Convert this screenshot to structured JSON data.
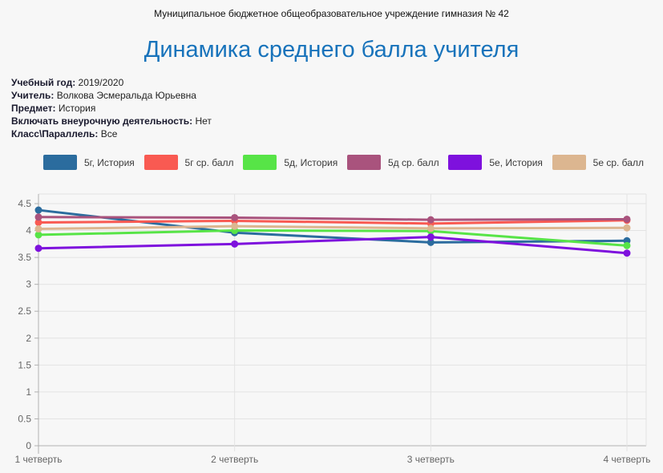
{
  "header": {
    "org_line": "Муниципальное бюджетное общеобразовательное учреждение гимназия № 42",
    "title": "Динамика среднего балла учителя",
    "title_color": "#1873bb"
  },
  "info": [
    {
      "label": "Учебный год:",
      "value": "2019/2020"
    },
    {
      "label": "Учитель:",
      "value": "Волкова Эсмеральда Юрьевна"
    },
    {
      "label": "Предмет:",
      "value": "История"
    },
    {
      "label": "Включать внеурочную деятельность:",
      "value": "Нет"
    },
    {
      "label": "Класс\\Параллель:",
      "value": "Все"
    }
  ],
  "chart_colors": {
    "background": "#f7f7f7",
    "gridline": "#e3e3e3",
    "axis": "#b0b0b0",
    "tick_text": "#666666"
  },
  "chart_data": {
    "type": "line",
    "title": "",
    "xlabel": "",
    "ylabel": "",
    "categories": [
      "1 четверть",
      "2 четверть",
      "3 четверть",
      "4 четверть"
    ],
    "series": [
      {
        "name": "5г, История",
        "color": "#2b6c9e",
        "values": [
          4.38,
          3.96,
          3.78,
          3.81
        ]
      },
      {
        "name": "5г ср. балл",
        "color": "#f95a52",
        "values": [
          4.15,
          4.18,
          4.13,
          4.19
        ]
      },
      {
        "name": "5д, История",
        "color": "#57e447",
        "values": [
          3.92,
          4.0,
          3.99,
          3.72
        ]
      },
      {
        "name": "5д ср. балл",
        "color": "#a9537d",
        "values": [
          4.25,
          4.24,
          4.2,
          4.21
        ]
      },
      {
        "name": "5е, История",
        "color": "#7e11dd",
        "values": [
          3.67,
          3.75,
          3.88,
          3.58
        ]
      },
      {
        "name": "5е ср. балл",
        "color": "#dcb690",
        "values": [
          4.03,
          4.08,
          4.04,
          4.05
        ]
      }
    ],
    "yticks": [
      "0",
      "0.5",
      "1",
      "1.5",
      "2",
      "2.5",
      "3",
      "3.5",
      "4",
      "4.5"
    ],
    "ylim": [
      0,
      4.68
    ],
    "grid": true,
    "legend_position": "top",
    "marker": "circle"
  }
}
